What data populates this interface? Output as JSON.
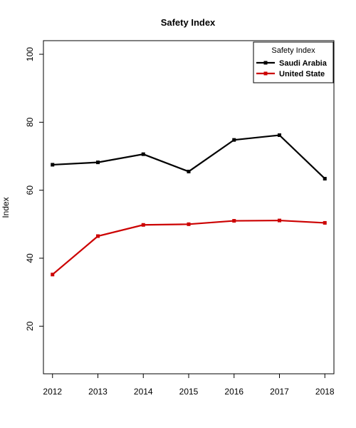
{
  "chart_data": {
    "type": "line",
    "title": "Safety Index",
    "xlabel": "",
    "ylabel": "Index",
    "x": [
      2012,
      2013,
      2014,
      2015,
      2016,
      2017,
      2018
    ],
    "xlim": [
      2011.8,
      2018.2
    ],
    "ylim": [
      6,
      104
    ],
    "yticks": [
      20,
      40,
      60,
      80,
      100
    ],
    "grid": false,
    "legend": {
      "title": "Safety Index",
      "position": "top-right"
    },
    "series": [
      {
        "name": "Saudi Arabia",
        "color": "#000000",
        "values": [
          67.5,
          68.2,
          70.6,
          65.5,
          74.8,
          76.2,
          63.4
        ]
      },
      {
        "name": "United State",
        "color": "#cc0000",
        "values": [
          35.2,
          46.5,
          49.8,
          50.0,
          51.0,
          51.1,
          50.4
        ]
      }
    ]
  }
}
